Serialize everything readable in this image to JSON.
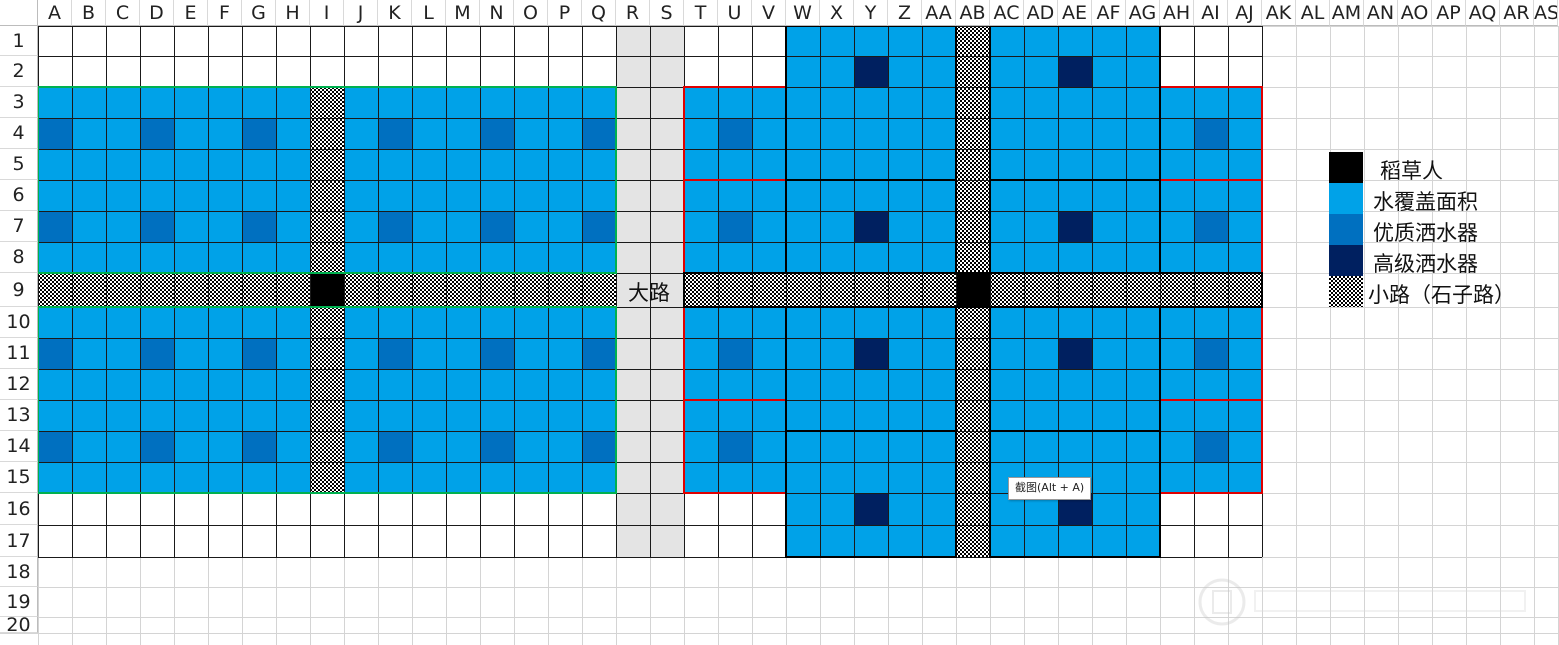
{
  "sheet": {
    "column_headers": [
      "A",
      "B",
      "C",
      "D",
      "E",
      "F",
      "G",
      "H",
      "I",
      "J",
      "K",
      "L",
      "M",
      "N",
      "O",
      "P",
      "Q",
      "R",
      "S",
      "T",
      "U",
      "V",
      "W",
      "X",
      "Y",
      "Z",
      "AA",
      "AB",
      "AC",
      "AD",
      "AE",
      "AF",
      "AG",
      "AH",
      "AI",
      "AJ",
      "AK",
      "AL",
      "AM",
      "AN",
      "AO",
      "AP",
      "AQ",
      "AR",
      "AS"
    ],
    "row_headers": [
      "1",
      "2",
      "3",
      "4",
      "5",
      "6",
      "7",
      "8",
      "9",
      "10",
      "11",
      "12",
      "13",
      "14",
      "15",
      "16",
      "17",
      "18",
      "19",
      "20"
    ],
    "road_label": "大路",
    "tooltip": "截图(Alt + A)"
  },
  "legend": {
    "items": [
      {
        "label": "稻草人",
        "swatch": "black"
      },
      {
        "label": "水覆盖面积",
        "swatch": "water"
      },
      {
        "label": "优质洒水器",
        "swatch": "quality"
      },
      {
        "label": "高级洒水器",
        "swatch": "iridium"
      },
      {
        "label": "小路（石子路）",
        "swatch": "gravel"
      }
    ]
  },
  "colors": {
    "water": "#00A2E8",
    "quality_sprinkler": "#0070C0",
    "iridium_sprinkler": "#002060",
    "scarecrow": "#000000",
    "main_road": "#E4E4E4",
    "left_plot_border": "#00B050",
    "right_plot_border": "#E00000"
  }
}
